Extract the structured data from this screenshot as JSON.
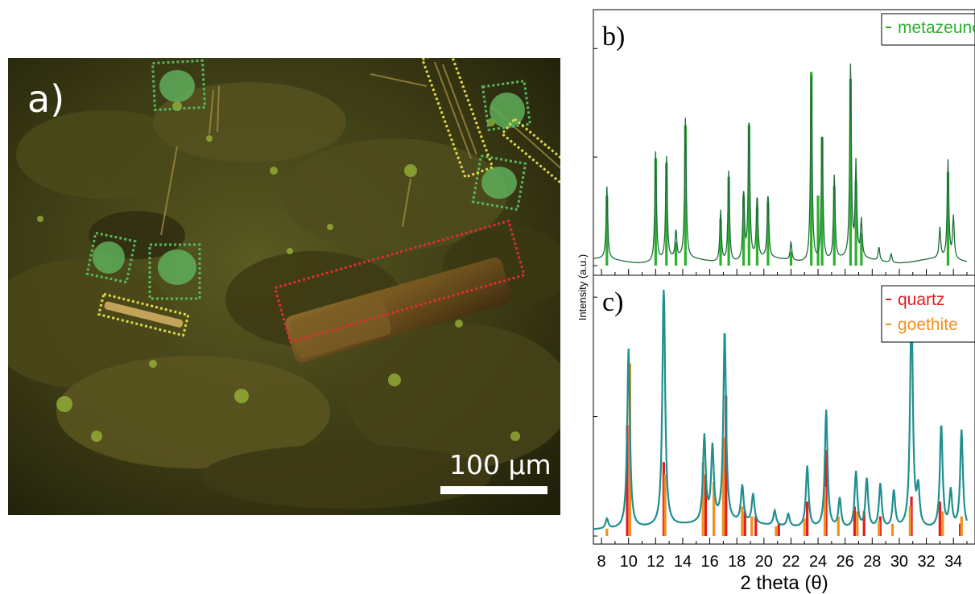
{
  "photo": {
    "panel_label": "a)",
    "scale_bar_label": "100 µm",
    "boxes": [
      {
        "color": "#58b860",
        "phase": "metazeunerite"
      },
      {
        "color": "#58b860",
        "phase": "metazeunerite"
      },
      {
        "color": "#58b860",
        "phase": "metazeunerite"
      },
      {
        "color": "#58b860",
        "phase": "metazeunerite"
      },
      {
        "color": "#58b860",
        "phase": "metazeunerite"
      },
      {
        "color": "#e0d84a",
        "phase": "goethite"
      },
      {
        "color": "#e0d84a",
        "phase": "goethite"
      },
      {
        "color": "#e0d84a",
        "phase": "goethite"
      },
      {
        "color": "#e03030",
        "phase": "quartz"
      }
    ]
  },
  "chart_data": [
    {
      "panel": "b)",
      "type": "line",
      "xlabel": "",
      "ylabel": "Intensity (a.u.)",
      "xlim": [
        7.4,
        35
      ],
      "ylim": [
        0,
        1
      ],
      "ticks_y_labels": false,
      "legend": {
        "position": "top-right",
        "entries": [
          {
            "label": "metazeunerite",
            "color": "#2db02d"
          }
        ]
      },
      "series": [
        {
          "role": "measured",
          "color": "#1e6b3c",
          "peaks": [
            [
              8.4,
              0.31
            ],
            [
              12.0,
              0.47
            ],
            [
              12.8,
              0.44
            ],
            [
              13.5,
              0.12
            ],
            [
              14.2,
              0.6
            ],
            [
              16.8,
              0.22
            ],
            [
              17.4,
              0.39
            ],
            [
              18.5,
              0.3
            ],
            [
              18.9,
              0.62
            ],
            [
              19.5,
              0.27
            ],
            [
              20.3,
              0.28
            ],
            [
              22.0,
              0.08
            ],
            [
              23.5,
              0.86
            ],
            [
              24.3,
              0.57
            ],
            [
              25.2,
              0.36
            ],
            [
              26.4,
              0.82
            ],
            [
              26.8,
              0.4
            ],
            [
              27.2,
              0.16
            ],
            [
              28.5,
              0.06
            ],
            [
              29.4,
              0.04
            ],
            [
              33.0,
              0.13
            ],
            [
              33.6,
              0.42
            ],
            [
              34.0,
              0.18
            ]
          ]
        },
        {
          "name": "metazeunerite",
          "role": "reference",
          "color": "#2db02d",
          "peaks": [
            [
              8.4,
              0.3
            ],
            [
              12.0,
              0.46
            ],
            [
              12.8,
              0.44
            ],
            [
              13.5,
              0.1
            ],
            [
              14.2,
              0.6
            ],
            [
              16.8,
              0.2
            ],
            [
              17.4,
              0.38
            ],
            [
              18.5,
              0.3
            ],
            [
              18.9,
              0.6
            ],
            [
              19.5,
              0.25
            ],
            [
              20.3,
              0.27
            ],
            [
              22.0,
              0.06
            ],
            [
              23.5,
              0.83
            ],
            [
              24.0,
              0.3
            ],
            [
              24.3,
              0.55
            ],
            [
              25.2,
              0.34
            ],
            [
              26.4,
              0.8
            ],
            [
              26.8,
              0.36
            ],
            [
              27.2,
              0.14
            ],
            [
              33.6,
              0.4
            ]
          ]
        }
      ]
    },
    {
      "panel": "c)",
      "type": "line",
      "xlabel": "2 theta (θ)",
      "ylabel": "Intensity (a.u.)",
      "xlim": [
        7.4,
        35
      ],
      "ylim": [
        0,
        1
      ],
      "x_ticks": [
        8,
        10,
        12,
        14,
        16,
        18,
        20,
        22,
        24,
        26,
        28,
        30,
        32,
        34
      ],
      "legend": {
        "position": "top-right",
        "entries": [
          {
            "label": "quartz",
            "color": "#e02020"
          },
          {
            "label": "goethite",
            "color": "#f09020"
          }
        ]
      },
      "series": [
        {
          "role": "measured",
          "color": "#1f8f8f",
          "peaks": [
            [
              8.4,
              0.04
            ],
            [
              10.0,
              0.73
            ],
            [
              12.6,
              1.0
            ],
            [
              15.6,
              0.35
            ],
            [
              16.2,
              0.3
            ],
            [
              17.1,
              0.78
            ],
            [
              18.4,
              0.15
            ],
            [
              19.2,
              0.12
            ],
            [
              20.8,
              0.06
            ],
            [
              21.8,
              0.05
            ],
            [
              23.2,
              0.25
            ],
            [
              24.6,
              0.48
            ],
            [
              25.6,
              0.12
            ],
            [
              26.8,
              0.23
            ],
            [
              27.6,
              0.2
            ],
            [
              28.6,
              0.18
            ],
            [
              29.6,
              0.15
            ],
            [
              30.9,
              0.92
            ],
            [
              31.4,
              0.15
            ],
            [
              33.1,
              0.42
            ],
            [
              33.8,
              0.15
            ],
            [
              34.6,
              0.4
            ]
          ]
        },
        {
          "name": "quartz",
          "role": "reference",
          "color": "#e02020",
          "peaks": [
            [
              9.9,
              0.45
            ],
            [
              12.6,
              0.3
            ],
            [
              15.7,
              0.25
            ],
            [
              17.2,
              0.57
            ],
            [
              18.6,
              0.1
            ],
            [
              19.4,
              0.08
            ],
            [
              21.1,
              0.05
            ],
            [
              23.2,
              0.14
            ],
            [
              24.6,
              0.35
            ],
            [
              26.7,
              0.12
            ],
            [
              27.4,
              0.1
            ],
            [
              28.6,
              0.08
            ],
            [
              30.9,
              0.16
            ],
            [
              33.0,
              0.14
            ],
            [
              34.5,
              0.05
            ]
          ]
        },
        {
          "name": "goethite",
          "role": "reference",
          "color": "#f09020",
          "peaks": [
            [
              8.4,
              0.03
            ],
            [
              10.1,
              0.7
            ],
            [
              12.7,
              0.25
            ],
            [
              15.5,
              0.3
            ],
            [
              16.3,
              0.22
            ],
            [
              17.0,
              0.4
            ],
            [
              18.4,
              0.12
            ],
            [
              19.1,
              0.08
            ],
            [
              20.9,
              0.04
            ],
            [
              23.0,
              0.07
            ],
            [
              24.5,
              0.2
            ],
            [
              25.5,
              0.08
            ],
            [
              26.9,
              0.1
            ],
            [
              28.5,
              0.06
            ],
            [
              29.5,
              0.05
            ],
            [
              30.8,
              0.12
            ],
            [
              33.2,
              0.1
            ],
            [
              34.6,
              0.08
            ]
          ]
        }
      ]
    }
  ]
}
